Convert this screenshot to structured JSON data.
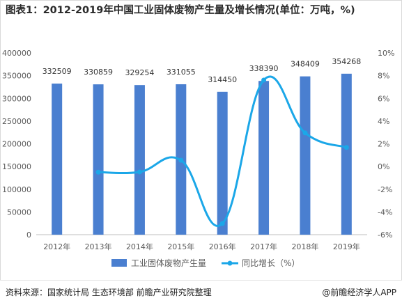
{
  "title": "图表1：2012-2019年中国工业固体废物产生量及增长情况(单位：万吨，%)",
  "source": "资料来源：国家统计局 生态环境部 前瞻产业研究院整理",
  "credit": "@前瞻经济学人APP",
  "colors": {
    "bar": "#4a7fd0",
    "line": "#1ba7e8",
    "axis_text": "#595959",
    "grid": "#e6e6e6"
  },
  "chart_data": {
    "type": "bar+line",
    "categories": [
      "2012年",
      "2013年",
      "2014年",
      "2015年",
      "2016年",
      "2017年",
      "2018年",
      "2019年"
    ],
    "series": [
      {
        "name": "工业固体废物产生量",
        "type": "bar",
        "axis": "left",
        "values": [
          332509,
          330859,
          329254,
          331055,
          314450,
          338390,
          348409,
          354268
        ],
        "labels": [
          "332509",
          "330859",
          "329254",
          "331055",
          "314450",
          "338390",
          "348409",
          "354268"
        ]
      },
      {
        "name": "同比增长（%）",
        "type": "line",
        "axis": "right",
        "values": [
          null,
          -0.5,
          -0.48,
          0.55,
          -5.02,
          7.61,
          2.96,
          1.68
        ]
      }
    ],
    "y_left": {
      "min": 0,
      "max": 400000,
      "ticks": [
        "0",
        "50000",
        "100000",
        "150000",
        "200000",
        "250000",
        "300000",
        "350000",
        "400000"
      ]
    },
    "y_right": {
      "min": -6,
      "max": 10,
      "ticks": [
        "-6%",
        "-4%",
        "-2%",
        "0%",
        "2%",
        "4%",
        "6%",
        "8%",
        "10%"
      ]
    },
    "legend_position": "bottom",
    "grid": false
  }
}
